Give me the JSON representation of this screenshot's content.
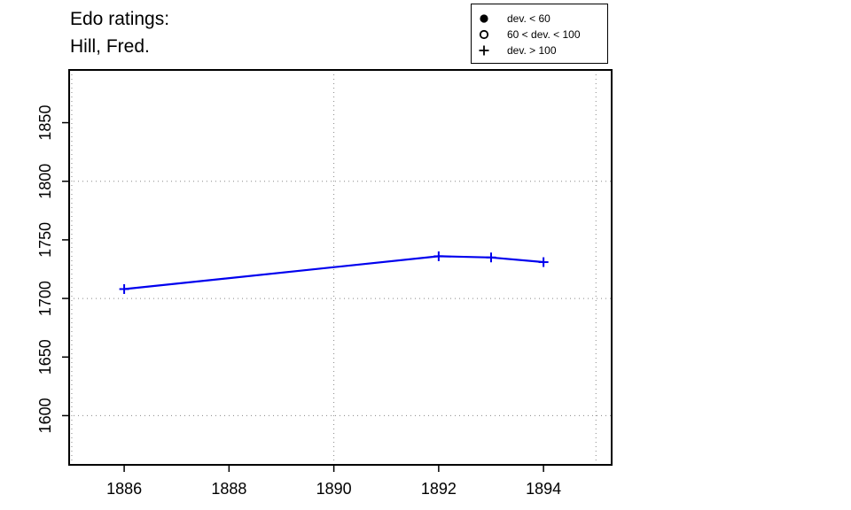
{
  "chart_data": {
    "type": "line",
    "title_lines": [
      "Edo ratings:",
      "Hill, Fred."
    ],
    "xlabel": "",
    "ylabel": "",
    "xlim": [
      1884.95,
      1895.3
    ],
    "ylim": [
      1558,
      1895
    ],
    "x_ticks": [
      1886,
      1888,
      1890,
      1892,
      1894
    ],
    "y_ticks": [
      1600,
      1650,
      1700,
      1750,
      1800,
      1850
    ],
    "x_grid": [
      1885,
      1890,
      1895
    ],
    "y_grid": [
      1600,
      1700,
      1800
    ],
    "grid": true,
    "line_color": "#0000ee",
    "series": [
      {
        "points": [
          {
            "x": 1886,
            "y": 1708,
            "marker": "plus"
          },
          {
            "x": 1892,
            "y": 1736,
            "marker": "plus"
          },
          {
            "x": 1893,
            "y": 1735,
            "marker": "plus"
          },
          {
            "x": 1894,
            "y": 1731,
            "marker": "plus"
          }
        ]
      }
    ],
    "legend": {
      "position": "top-right",
      "entries": [
        {
          "symbol": "filled-circle",
          "label": "dev. < 60"
        },
        {
          "symbol": "open-circle",
          "label": "60 < dev. < 100"
        },
        {
          "symbol": "plus",
          "label": "dev. > 100"
        }
      ]
    }
  }
}
